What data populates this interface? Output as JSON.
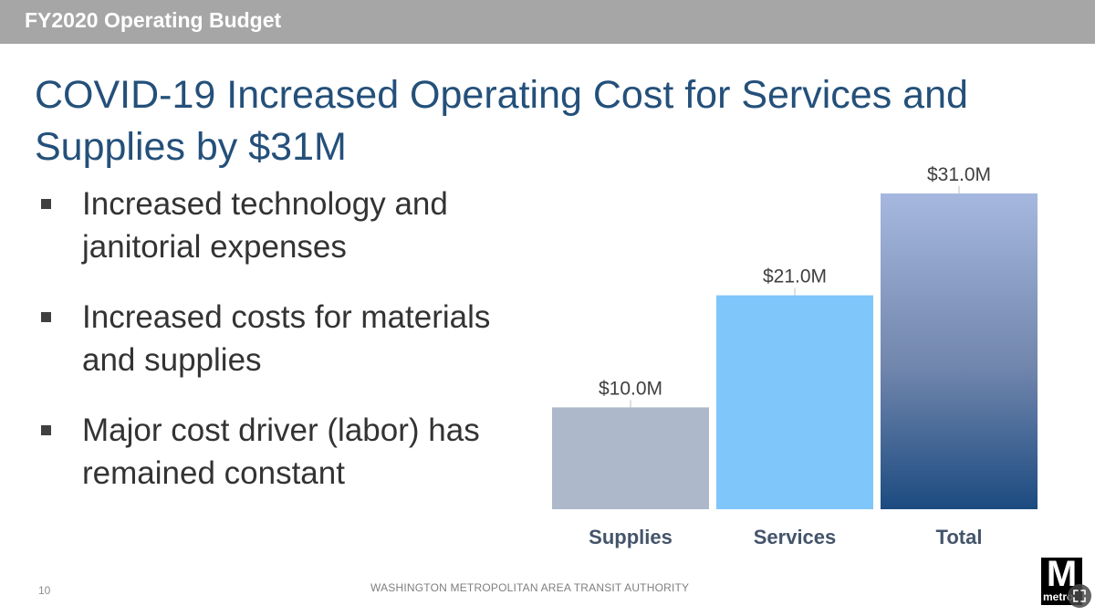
{
  "header": {
    "section_title": "FY2020 Operating Budget"
  },
  "slide": {
    "title": "COVID-19 Increased Operating Cost for Services and Supplies by $31M",
    "bullets": [
      "Increased technology and janitorial expenses",
      "Increased costs for materials and supplies",
      "Major cost driver (labor) has remained constant"
    ]
  },
  "chart_data": {
    "type": "bar",
    "categories": [
      "Supplies",
      "Services",
      "Total"
    ],
    "values": [
      10.0,
      21.0,
      31.0
    ],
    "data_labels": [
      "$10.0M",
      "$21.0M",
      "$31.0M"
    ],
    "colors": [
      "#adb9ca",
      "#7fc6fb",
      "#24507a"
    ],
    "title": "",
    "xlabel": "",
    "ylabel": "",
    "ylim": [
      0,
      31.0
    ]
  },
  "footer": {
    "page_number": "10",
    "organization": "WASHINGTON METROPOLITAN AREA TRANSIT AUTHORITY"
  },
  "logo": {
    "letter": "M",
    "word": "metro"
  },
  "icons": {
    "expand": "expand-icon"
  }
}
